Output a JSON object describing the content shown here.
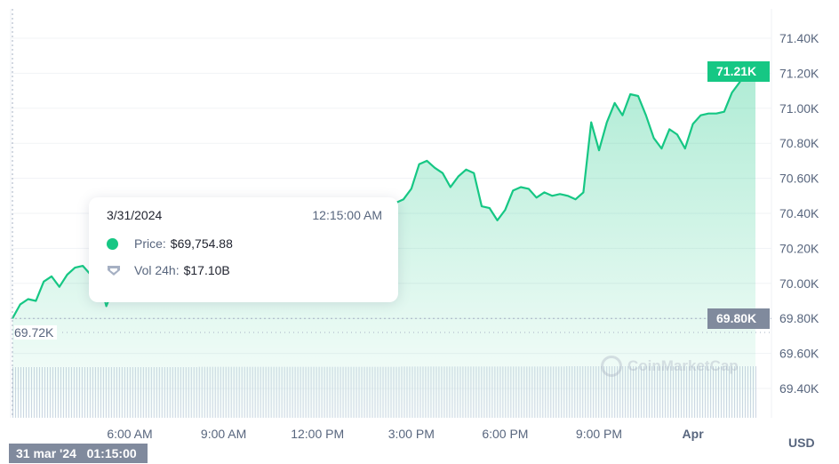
{
  "chart_data": {
    "type": "area",
    "currency": "USD",
    "series": [
      {
        "values": [
          69.8,
          69.88,
          69.91,
          69.9,
          70.01,
          70.04,
          69.98,
          70.05,
          70.09,
          70.1,
          70.05,
          70.04,
          69.87,
          69.98,
          69.94,
          69.91,
          69.93,
          70.0,
          70.05,
          70.07,
          70.08,
          70.1,
          70.11,
          70.13,
          70.14,
          70.16,
          70.17,
          70.2,
          70.2,
          70.22,
          70.24,
          70.25,
          70.26,
          70.27,
          70.29,
          70.3,
          70.32,
          70.33,
          70.35,
          70.35,
          70.36,
          70.37,
          70.38,
          70.38,
          70.39,
          70.4,
          70.42,
          70.43,
          70.45,
          70.46,
          70.48,
          70.54,
          70.68,
          70.7,
          70.66,
          70.63,
          70.55,
          70.61,
          70.65,
          70.63,
          70.44,
          70.43,
          70.36,
          70.42,
          70.53,
          70.55,
          70.54,
          70.49,
          70.52,
          70.5,
          70.51,
          70.5,
          70.48,
          70.52,
          70.92,
          70.76,
          70.92,
          71.03,
          70.96,
          71.08,
          71.07,
          70.96,
          70.83,
          70.77,
          70.88,
          70.85,
          70.77,
          70.91,
          70.96,
          70.97,
          70.97,
          70.98,
          71.09,
          71.15,
          71.26,
          71.21
        ]
      }
    ],
    "volume": [
      17.0,
      17.0,
      17.0,
      17.0,
      17.0,
      17.0,
      17.0,
      17.0,
      17.0,
      17.0,
      17.0,
      17.0,
      17.0,
      17.0,
      17.0,
      17.0,
      17.0,
      17.0,
      17.0,
      17.0,
      17.0,
      17.0,
      17.0,
      17.0,
      17.1,
      17.1,
      17.1,
      17.1,
      17.1,
      17.1,
      17.1,
      17.1,
      17.1,
      17.1,
      17.1,
      17.1,
      17.1,
      17.1,
      17.1,
      17.1,
      17.1,
      17.1,
      17.1,
      17.1,
      17.1,
      17.1,
      17.1,
      17.1,
      17.1,
      17.1,
      17.2,
      17.2,
      17.2,
      17.2,
      17.2,
      17.2,
      17.2,
      17.2,
      17.2,
      17.2,
      17.2,
      17.2,
      17.2,
      17.2,
      17.2,
      17.2,
      17.2,
      17.2,
      17.2,
      17.2,
      17.2,
      17.3,
      17.3,
      17.3,
      17.3,
      17.3,
      17.3,
      17.3,
      17.3,
      17.3,
      17.3,
      17.3,
      17.3,
      17.3,
      17.3,
      17.3,
      17.3,
      17.3,
      17.3,
      17.3,
      17.3,
      17.3,
      17.3,
      17.3,
      17.3,
      17.3
    ],
    "ylim": [
      69.3,
      71.5
    ],
    "y_ticks": [
      "71.40K",
      "71.20K",
      "71.00K",
      "70.80K",
      "70.60K",
      "70.40K",
      "70.20K",
      "70.00K",
      "69.80K",
      "69.60K",
      "69.40K"
    ],
    "y_tick_values": [
      71.4,
      71.2,
      71.0,
      70.8,
      70.6,
      70.4,
      70.2,
      70.0,
      69.8,
      69.6,
      69.4
    ],
    "x_ticks": [
      {
        "label": "6:00 AM",
        "index": 15,
        "bold": false
      },
      {
        "label": "9:00 AM",
        "index": 27,
        "bold": false
      },
      {
        "label": "12:00 PM",
        "index": 39,
        "bold": false
      },
      {
        "label": "3:00 PM",
        "index": 51,
        "bold": false
      },
      {
        "label": "6:00 PM",
        "index": 63,
        "bold": false
      },
      {
        "label": "9:00 PM",
        "index": 75,
        "bold": false
      },
      {
        "label": "Apr",
        "index": 87,
        "bold": true
      }
    ],
    "grid": true,
    "current_price_label": "71.21K",
    "crosshair": {
      "price_label": "69.80K",
      "price_value": 69.8,
      "low_label": "69.72K",
      "low_value": 69.72,
      "x_label": "31 mar '24   01:15:00"
    },
    "unit_label": "USD",
    "colors": {
      "line": "#16c784",
      "fill": "#16c784",
      "badge_current": "#16c784",
      "badge_crosshair": "#808a9d",
      "volume": "#cfd6e4"
    }
  },
  "tooltip": {
    "date": "3/31/2024",
    "time": "12:15:00 AM",
    "price_label": "Price:",
    "price_value": "$69,754.88",
    "volume_label": "Vol 24h:",
    "volume_value": "$17.10B"
  },
  "watermark": "CoinMarketCap"
}
